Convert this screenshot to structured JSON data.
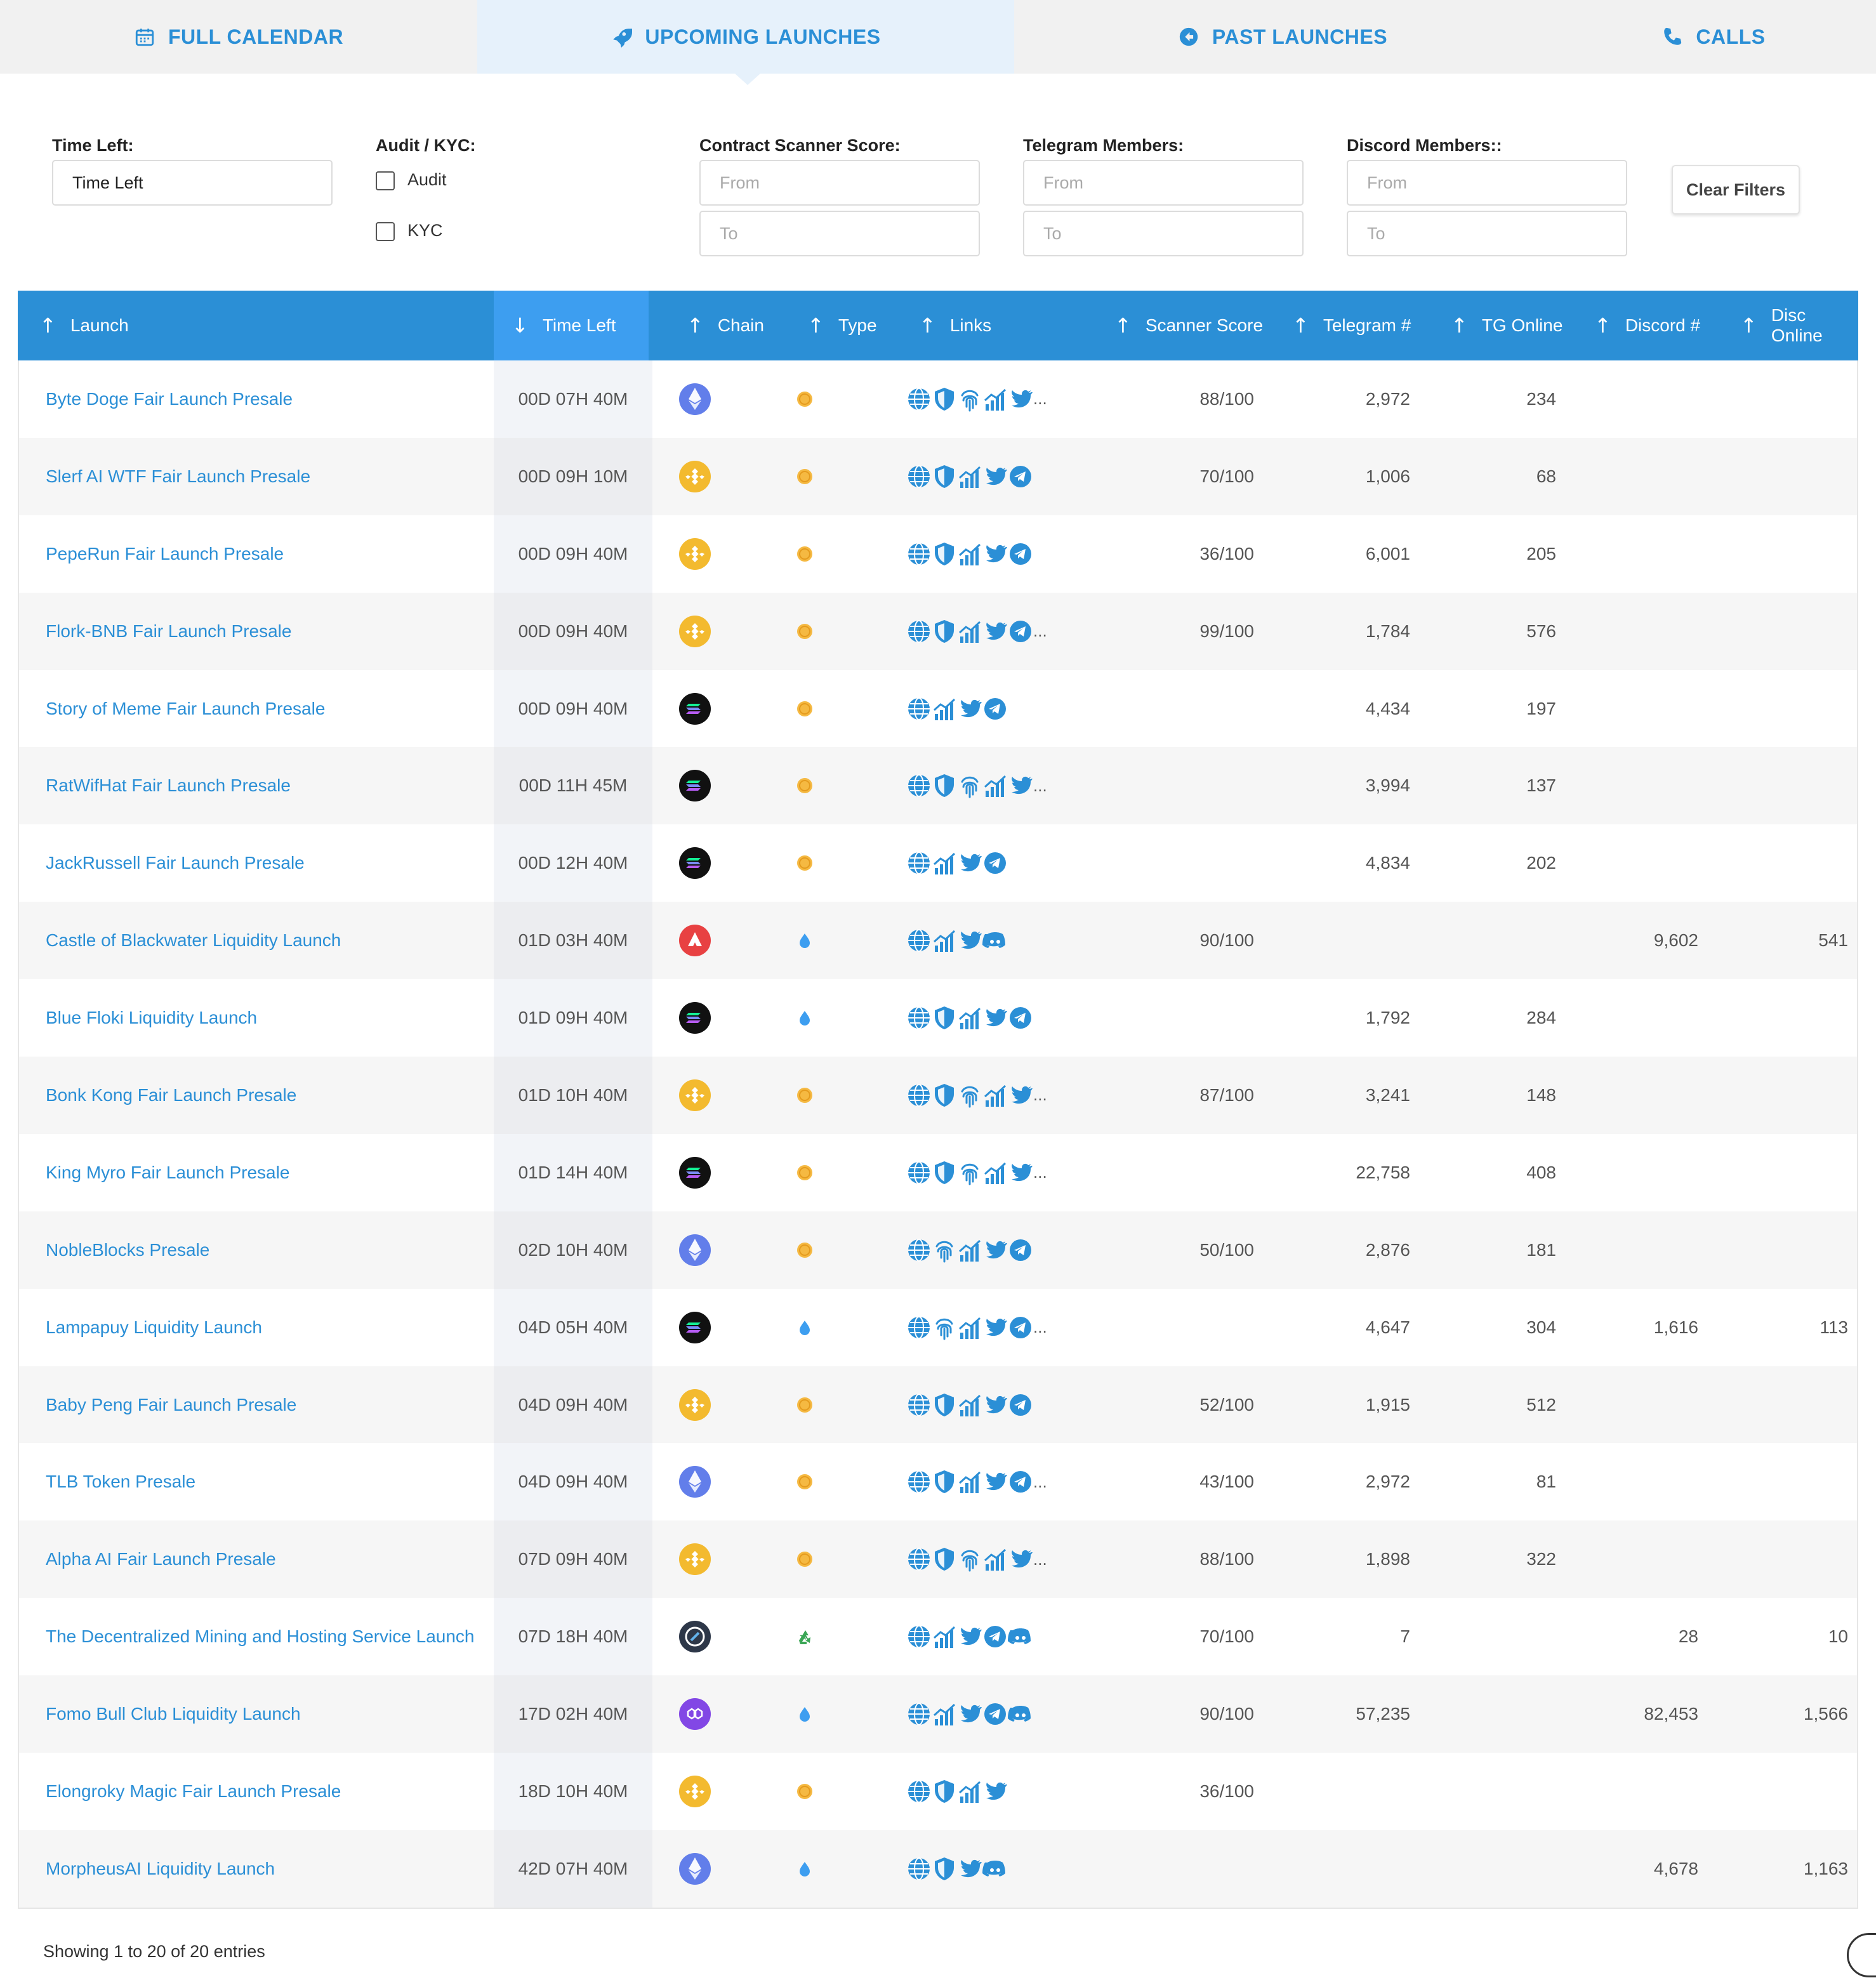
{
  "tabs": [
    {
      "label": "FULL CALENDAR",
      "icon": "calendar-icon"
    },
    {
      "label": "UPCOMING LAUNCHES",
      "icon": "rocket-icon",
      "active": true
    },
    {
      "label": "PAST LAUNCHES",
      "icon": "arrow-left-circle-icon"
    },
    {
      "label": "CALLS",
      "icon": "phone-icon"
    }
  ],
  "filters": {
    "time_left": {
      "label": "Time Left:",
      "value": "Time Left"
    },
    "audit_kyc": {
      "label": "Audit / KYC:",
      "options": [
        "Audit",
        "KYC"
      ]
    },
    "scanner": {
      "label": "Contract Scanner Score:",
      "from_placeholder": "From",
      "to_placeholder": "To"
    },
    "telegram": {
      "label": "Telegram Members:",
      "from_placeholder": "From",
      "to_placeholder": "To"
    },
    "discord": {
      "label": "Discord Members::",
      "from_placeholder": "From",
      "to_placeholder": "To"
    },
    "clear_label": "Clear Filters"
  },
  "table": {
    "columns": [
      "Launch",
      "Time Left",
      "Chain",
      "Type",
      "Links",
      "Scanner Score",
      "Telegram #",
      "TG Online",
      "Discord #",
      "Disc Online"
    ],
    "sorted_column": "Time Left",
    "rows": [
      {
        "launch": "Byte Doge Fair Launch Presale",
        "time": "00D 07H 40M",
        "chain": "ethereum",
        "type": "coin",
        "links": [
          "globe",
          "shield",
          "fingerprint",
          "chart",
          "twitter"
        ],
        "more": true,
        "score": "88/100",
        "tg": "2,972",
        "tgon": "234",
        "dc": "",
        "dcon": ""
      },
      {
        "launch": "Slerf AI WTF Fair Launch Presale",
        "time": "00D 09H 10M",
        "chain": "bnb",
        "type": "coin",
        "links": [
          "globe",
          "shield",
          "chart",
          "twitter",
          "telegram"
        ],
        "more": false,
        "score": "70/100",
        "tg": "1,006",
        "tgon": "68",
        "dc": "",
        "dcon": ""
      },
      {
        "launch": "PepeRun Fair Launch Presale",
        "time": "00D 09H 40M",
        "chain": "bnb",
        "type": "coin",
        "links": [
          "globe",
          "shield",
          "chart",
          "twitter",
          "telegram"
        ],
        "more": false,
        "score": "36/100",
        "tg": "6,001",
        "tgon": "205",
        "dc": "",
        "dcon": ""
      },
      {
        "launch": "Flork-BNB Fair Launch Presale",
        "time": "00D 09H 40M",
        "chain": "bnb",
        "type": "coin",
        "links": [
          "globe",
          "shield",
          "chart",
          "twitter",
          "telegram"
        ],
        "more": true,
        "score": "99/100",
        "tg": "1,784",
        "tgon": "576",
        "dc": "",
        "dcon": ""
      },
      {
        "launch": "Story of Meme Fair Launch Presale",
        "time": "00D 09H 40M",
        "chain": "solana",
        "type": "coin",
        "links": [
          "globe",
          "chart",
          "twitter",
          "telegram"
        ],
        "more": false,
        "score": "",
        "tg": "4,434",
        "tgon": "197",
        "dc": "",
        "dcon": ""
      },
      {
        "launch": "RatWifHat Fair Launch Presale",
        "time": "00D 11H 45M",
        "chain": "solana",
        "type": "coin",
        "links": [
          "globe",
          "shield",
          "fingerprint",
          "chart",
          "twitter"
        ],
        "more": true,
        "score": "",
        "tg": "3,994",
        "tgon": "137",
        "dc": "",
        "dcon": ""
      },
      {
        "launch": "JackRussell Fair Launch Presale",
        "time": "00D 12H 40M",
        "chain": "solana",
        "type": "coin",
        "links": [
          "globe",
          "chart",
          "twitter",
          "telegram"
        ],
        "more": false,
        "score": "",
        "tg": "4,834",
        "tgon": "202",
        "dc": "",
        "dcon": ""
      },
      {
        "launch": "Castle of Blackwater Liquidity Launch",
        "time": "01D 03H 40M",
        "chain": "avalanche",
        "type": "drop",
        "links": [
          "globe",
          "chart",
          "twitter",
          "discord"
        ],
        "more": false,
        "score": "90/100",
        "tg": "",
        "tgon": "",
        "dc": "9,602",
        "dcon": "541"
      },
      {
        "launch": "Blue Floki Liquidity Launch",
        "time": "01D 09H 40M",
        "chain": "solana",
        "type": "drop",
        "links": [
          "globe",
          "shield",
          "chart",
          "twitter",
          "telegram"
        ],
        "more": false,
        "score": "",
        "tg": "1,792",
        "tgon": "284",
        "dc": "",
        "dcon": ""
      },
      {
        "launch": "Bonk Kong Fair Launch Presale",
        "time": "01D 10H 40M",
        "chain": "bnb",
        "type": "coin",
        "links": [
          "globe",
          "shield",
          "fingerprint",
          "chart",
          "twitter"
        ],
        "more": true,
        "score": "87/100",
        "tg": "3,241",
        "tgon": "148",
        "dc": "",
        "dcon": ""
      },
      {
        "launch": "King Myro Fair Launch Presale",
        "time": "01D 14H 40M",
        "chain": "solana",
        "type": "coin",
        "links": [
          "globe",
          "shield",
          "fingerprint",
          "chart",
          "twitter"
        ],
        "more": true,
        "score": "",
        "tg": "22,758",
        "tgon": "408",
        "dc": "",
        "dcon": ""
      },
      {
        "launch": "NobleBlocks Presale",
        "time": "02D 10H 40M",
        "chain": "ethereum",
        "type": "coin",
        "links": [
          "globe",
          "fingerprint",
          "chart",
          "twitter",
          "telegram"
        ],
        "more": false,
        "score": "50/100",
        "tg": "2,876",
        "tgon": "181",
        "dc": "",
        "dcon": ""
      },
      {
        "launch": "Lampapuy Liquidity Launch",
        "time": "04D 05H 40M",
        "chain": "solana",
        "type": "drop",
        "links": [
          "globe",
          "fingerprint",
          "chart",
          "twitter",
          "telegram"
        ],
        "more": true,
        "score": "",
        "tg": "4,647",
        "tgon": "304",
        "dc": "1,616",
        "dcon": "113"
      },
      {
        "launch": "Baby Peng Fair Launch Presale",
        "time": "04D 09H 40M",
        "chain": "bnb",
        "type": "coin",
        "links": [
          "globe",
          "shield",
          "chart",
          "twitter",
          "telegram"
        ],
        "more": false,
        "score": "52/100",
        "tg": "1,915",
        "tgon": "512",
        "dc": "",
        "dcon": ""
      },
      {
        "launch": "TLB Token Presale",
        "time": "04D 09H 40M",
        "chain": "ethereum",
        "type": "coin",
        "links": [
          "globe",
          "shield",
          "chart",
          "twitter",
          "telegram"
        ],
        "more": true,
        "score": "43/100",
        "tg": "2,972",
        "tgon": "81",
        "dc": "",
        "dcon": ""
      },
      {
        "launch": "Alpha AI Fair Launch Presale",
        "time": "07D 09H 40M",
        "chain": "bnb",
        "type": "coin",
        "links": [
          "globe",
          "shield",
          "fingerprint",
          "chart",
          "twitter"
        ],
        "more": true,
        "score": "88/100",
        "tg": "1,898",
        "tgon": "322",
        "dc": "",
        "dcon": ""
      },
      {
        "launch": "The Decentralized Mining and Hosting Service Launch",
        "time": "07D 18H 40M",
        "chain": "other",
        "type": "recycle",
        "links": [
          "globe",
          "chart",
          "twitter",
          "telegram",
          "discord"
        ],
        "more": false,
        "score": "70/100",
        "tg": "7",
        "tgon": "",
        "dc": "28",
        "dcon": "10"
      },
      {
        "launch": "Fomo Bull Club Liquidity Launch",
        "time": "17D 02H 40M",
        "chain": "polygon",
        "type": "drop",
        "links": [
          "globe",
          "chart",
          "twitter",
          "telegram",
          "discord"
        ],
        "more": false,
        "score": "90/100",
        "tg": "57,235",
        "tgon": "",
        "dc": "82,453",
        "dcon": "1,566"
      },
      {
        "launch": "Elongroky Magic Fair Launch Presale",
        "time": "18D 10H 40M",
        "chain": "bnb",
        "type": "coin",
        "links": [
          "globe",
          "shield",
          "chart",
          "twitter"
        ],
        "more": false,
        "score": "36/100",
        "tg": "",
        "tgon": "",
        "dc": "",
        "dcon": ""
      },
      {
        "launch": "MorpheusAI Liquidity Launch",
        "time": "42D 07H 40M",
        "chain": "ethereum",
        "type": "drop",
        "links": [
          "globe",
          "shield",
          "twitter",
          "discord"
        ],
        "more": false,
        "score": "",
        "tg": "",
        "tgon": "",
        "dc": "4,678",
        "dcon": "1,163"
      }
    ]
  },
  "footer": {
    "showing": "Showing 1 to 20 of 20 entries"
  },
  "colors": {
    "accent": "#2b8fd6",
    "header_bg": "#2b8fd6",
    "active_tab_bg": "#e6f1fb"
  }
}
